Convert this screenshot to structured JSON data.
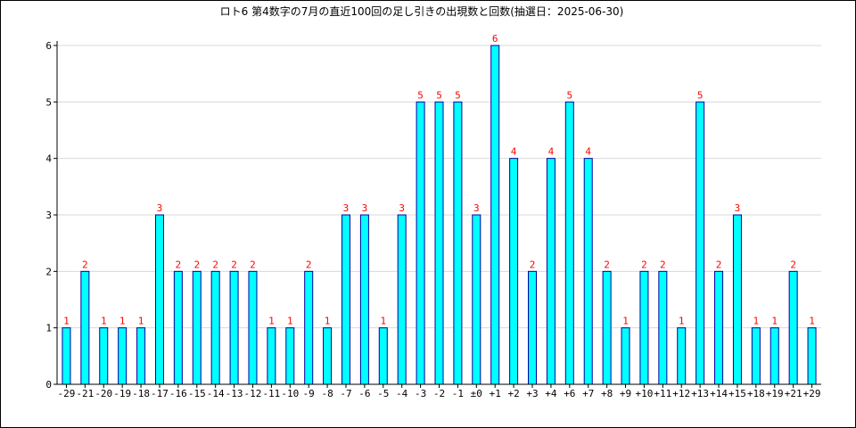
{
  "chart_data": {
    "type": "bar",
    "title": "ロト6 第4数字の7月の直近100回の足し引きの出現数と回数(抽選日：2025-06-30)",
    "xlabel": "",
    "ylabel": "",
    "categories": [
      "-29",
      "-21",
      "-20",
      "-19",
      "-18",
      "-17",
      "-16",
      "-15",
      "-14",
      "-13",
      "-12",
      "-11",
      "-10",
      "-9",
      "-8",
      "-7",
      "-6",
      "-5",
      "-4",
      "-3",
      "-2",
      "-1",
      "±0",
      "+1",
      "+2",
      "+3",
      "+4",
      "+6",
      "+7",
      "+8",
      "+9",
      "+10",
      "+11",
      "+12",
      "+13",
      "+14",
      "+15",
      "+18",
      "+19",
      "+21",
      "+29"
    ],
    "values": [
      1,
      2,
      1,
      1,
      1,
      3,
      2,
      2,
      2,
      2,
      2,
      1,
      1,
      2,
      1,
      3,
      3,
      1,
      3,
      5,
      5,
      5,
      3,
      6,
      4,
      2,
      4,
      5,
      4,
      2,
      1,
      2,
      2,
      1,
      5,
      2,
      3,
      1,
      1,
      2,
      1
    ],
    "ylim": [
      0,
      6
    ],
    "yticks": [
      0,
      1,
      2,
      3,
      4,
      5,
      6
    ],
    "grid": true,
    "legend": "none",
    "colors": {
      "bar_fill": "#00ffff",
      "bar_stroke": "#0000a0",
      "value_label": "#ff0000",
      "grid": "#d8d8d8",
      "axis": "#000000"
    }
  }
}
